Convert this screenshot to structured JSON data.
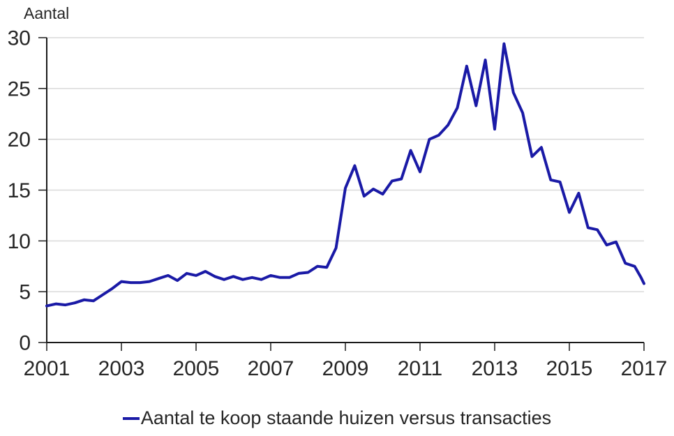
{
  "chart_data": {
    "type": "line",
    "title": "Aantal",
    "legend": "Aantal te koop staande huizen versus transacties",
    "x": [
      2001,
      2001.25,
      2001.5,
      2001.75,
      2002,
      2002.25,
      2002.5,
      2002.75,
      2003,
      2003.25,
      2003.5,
      2003.75,
      2004,
      2004.25,
      2004.5,
      2004.75,
      2005,
      2005.25,
      2005.5,
      2005.75,
      2006,
      2006.25,
      2006.5,
      2006.75,
      2007,
      2007.25,
      2007.5,
      2007.75,
      2008,
      2008.25,
      2008.5,
      2008.75,
      2009,
      2009.25,
      2009.5,
      2009.75,
      2010,
      2010.25,
      2010.5,
      2010.75,
      2011,
      2011.25,
      2011.5,
      2011.75,
      2012,
      2012.25,
      2012.5,
      2012.75,
      2013,
      2013.25,
      2013.5,
      2013.75,
      2014,
      2014.25,
      2014.5,
      2014.75,
      2015,
      2015.25,
      2015.5,
      2015.75,
      2016,
      2016.25,
      2016.5,
      2016.75,
      2016.92,
      2017
    ],
    "y": [
      3.6,
      3.8,
      3.7,
      3.9,
      4.2,
      4.1,
      4.7,
      5.3,
      6.0,
      5.9,
      5.9,
      6.0,
      6.3,
      6.6,
      6.1,
      6.8,
      6.6,
      7.0,
      6.5,
      6.2,
      6.5,
      6.2,
      6.4,
      6.2,
      6.6,
      6.4,
      6.4,
      6.8,
      6.9,
      7.5,
      7.4,
      9.3,
      15.2,
      17.4,
      14.4,
      15.1,
      14.6,
      15.9,
      16.1,
      18.9,
      16.8,
      20.0,
      20.4,
      21.4,
      23.1,
      27.2,
      23.3,
      27.8,
      21.0,
      29.4,
      24.6,
      22.6,
      18.3,
      19.2,
      16.0,
      15.8,
      12.8,
      14.7,
      11.3,
      11.1,
      9.6,
      9.9,
      7.8,
      7.5,
      6.4,
      5.8
    ],
    "x_ticks": [
      2001,
      2003,
      2005,
      2007,
      2009,
      2011,
      2013,
      2015,
      2017
    ],
    "y_ticks": [
      0,
      5,
      10,
      15,
      20,
      25,
      30
    ],
    "xlim": [
      2001,
      2017
    ],
    "ylim": [
      0,
      30
    ],
    "grid": "horizontal-only",
    "legend_position": "bottom-center",
    "line_color": "#1A1AA6",
    "grid_color": "#D9D9D9",
    "axis_color": "#1A1A1A",
    "text_color": "#262626"
  }
}
